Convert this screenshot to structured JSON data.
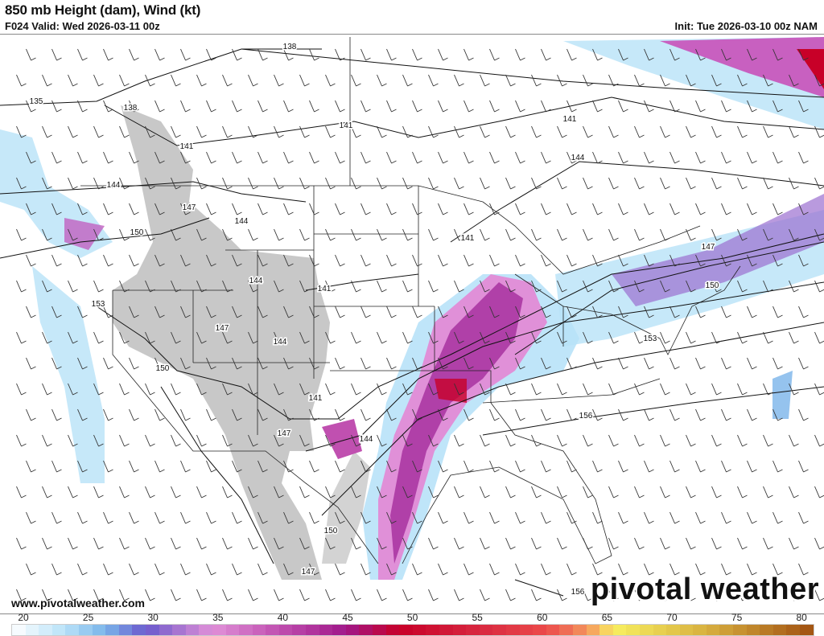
{
  "header": {
    "title": "850 mb Height (dam), Wind (kt)",
    "valid": "F024 Valid: Wed 2026-03-11 00z",
    "init": "Init: Tue 2026-03-10 00z NAM"
  },
  "footer": {
    "url": "www.pivotalweather.com",
    "logo": "pivotal weather"
  },
  "map": {
    "field": "850 mb wind speed (kt) shaded, height contours (dam), wind barbs",
    "contour_labels": [
      "138",
      "135",
      "138",
      "141",
      "141",
      "141",
      "144",
      "144",
      "147",
      "144",
      "150",
      "144",
      "141",
      "153",
      "147",
      "144",
      "150",
      "141",
      "147",
      "144",
      "147",
      "150",
      "141",
      "153",
      "150",
      "147",
      "156",
      "156"
    ],
    "terrain_mask_color": "#c8c8c8"
  },
  "colorbar": {
    "ticks": [
      "20",
      "25",
      "30",
      "35",
      "40",
      "45",
      "50",
      "55",
      "60",
      "65",
      "70",
      "75",
      "80"
    ],
    "min": 20,
    "max": 80,
    "stops": [
      {
        "v": 20,
        "c": "#ffffff"
      },
      {
        "v": 24,
        "c": "#b8e2f8"
      },
      {
        "v": 27,
        "c": "#7ab4ea"
      },
      {
        "v": 30,
        "c": "#6a5acd"
      },
      {
        "v": 32,
        "c": "#9b6fd0"
      },
      {
        "v": 35,
        "c": "#e090d8"
      },
      {
        "v": 40,
        "c": "#c050b0"
      },
      {
        "v": 45,
        "c": "#a0188a"
      },
      {
        "v": 49,
        "c": "#c80028"
      },
      {
        "v": 55,
        "c": "#d82840"
      },
      {
        "v": 60,
        "c": "#ec4a4a"
      },
      {
        "v": 62,
        "c": "#f07858"
      },
      {
        "v": 64,
        "c": "#f8b860"
      },
      {
        "v": 65,
        "c": "#f8f060"
      },
      {
        "v": 72,
        "c": "#d8b040"
      },
      {
        "v": 80,
        "c": "#a05010"
      }
    ]
  }
}
